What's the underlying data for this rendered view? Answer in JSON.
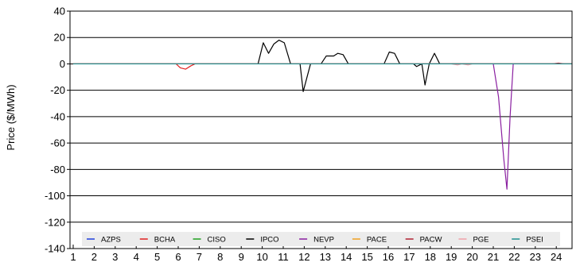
{
  "chart_data": {
    "type": "line",
    "ylabel": "Price ($/MWh)",
    "xlabel": "",
    "ylim": [
      -140,
      40
    ],
    "xlim": [
      1,
      24.75
    ],
    "y_ticks": [
      40,
      20,
      0,
      -20,
      -40,
      -60,
      -80,
      -100,
      -120,
      -140
    ],
    "x_ticks": [
      1,
      2,
      3,
      4,
      5,
      6,
      7,
      8,
      9,
      10,
      11,
      12,
      13,
      14,
      15,
      16,
      17,
      18,
      19,
      20,
      21,
      22,
      23,
      24
    ],
    "grid": "horizontal",
    "legend_position": "bottom-inside",
    "series": [
      {
        "name": "AZPS",
        "color": "#1f3fdc",
        "points": [
          [
            1,
            0
          ],
          [
            24.75,
            0
          ]
        ]
      },
      {
        "name": "BCHA",
        "color": "#e02020",
        "points": [
          [
            1,
            0
          ],
          [
            5.9,
            0
          ],
          [
            6.1,
            -3
          ],
          [
            6.35,
            -4
          ],
          [
            6.6,
            -1.5
          ],
          [
            6.8,
            0
          ],
          [
            24.75,
            0
          ]
        ]
      },
      {
        "name": "CISO",
        "color": "#1fa01f",
        "points": [
          [
            1,
            0
          ],
          [
            24.75,
            0
          ]
        ]
      },
      {
        "name": "IPCO",
        "color": "#000000",
        "points": [
          [
            1,
            0
          ],
          [
            9.8,
            0
          ],
          [
            10.05,
            16
          ],
          [
            10.3,
            8
          ],
          [
            10.55,
            15
          ],
          [
            10.8,
            18
          ],
          [
            11.05,
            16
          ],
          [
            11.35,
            0
          ],
          [
            11.8,
            0
          ],
          [
            11.95,
            -21
          ],
          [
            12.3,
            0
          ],
          [
            12.8,
            0
          ],
          [
            13.05,
            6
          ],
          [
            13.4,
            6
          ],
          [
            13.6,
            8
          ],
          [
            13.85,
            7
          ],
          [
            14.1,
            0
          ],
          [
            15.8,
            0
          ],
          [
            16.05,
            9
          ],
          [
            16.3,
            8
          ],
          [
            16.55,
            0
          ],
          [
            17.2,
            0
          ],
          [
            17.35,
            -2
          ],
          [
            17.6,
            0
          ],
          [
            17.75,
            -16
          ],
          [
            17.95,
            0
          ],
          [
            18.2,
            8
          ],
          [
            18.45,
            0
          ],
          [
            24.75,
            0
          ]
        ]
      },
      {
        "name": "NEVP",
        "color": "#8a1fa0",
        "points": [
          [
            1,
            0
          ],
          [
            21,
            0
          ],
          [
            21.25,
            -25
          ],
          [
            21.5,
            -72
          ],
          [
            21.65,
            -95
          ],
          [
            21.8,
            -40
          ],
          [
            21.95,
            0
          ],
          [
            24.75,
            0
          ]
        ]
      },
      {
        "name": "PACE",
        "color": "#f0a020",
        "points": [
          [
            1,
            0
          ],
          [
            24.75,
            0
          ]
        ]
      },
      {
        "name": "PACW",
        "color": "#b02030",
        "points": [
          [
            1,
            0
          ],
          [
            23.8,
            0
          ],
          [
            24.1,
            0.6
          ],
          [
            24.4,
            0
          ],
          [
            24.75,
            0
          ]
        ]
      },
      {
        "name": "PGE",
        "color": "#f0a0a8",
        "points": [
          [
            1,
            0
          ],
          [
            19,
            0
          ],
          [
            19.3,
            -0.8
          ],
          [
            19.5,
            0
          ],
          [
            19.8,
            -0.8
          ],
          [
            20,
            0
          ],
          [
            24.75,
            0
          ]
        ]
      },
      {
        "name": "PSEI",
        "color": "#1f8f8f",
        "points": [
          [
            1,
            0
          ],
          [
            24.75,
            0
          ]
        ]
      }
    ]
  }
}
